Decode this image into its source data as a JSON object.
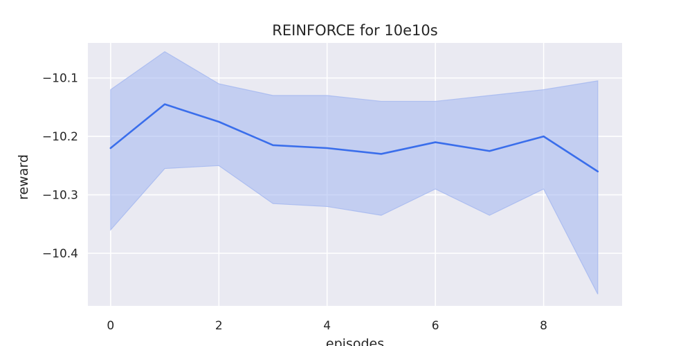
{
  "chart_data": {
    "type": "line",
    "title": "REINFORCE for 10e10s",
    "xlabel": "episodes",
    "ylabel": "reward",
    "x": [
      0,
      1,
      2,
      3,
      4,
      5,
      6,
      7,
      8,
      9
    ],
    "series": [
      {
        "values": [
          -10.22,
          -10.145,
          -10.175,
          -10.215,
          -10.22,
          -10.23,
          -10.21,
          -10.225,
          -10.2,
          -10.26
        ],
        "lower": [
          -10.36,
          -10.255,
          -10.25,
          -10.315,
          -10.32,
          -10.335,
          -10.29,
          -10.335,
          -10.29,
          -10.47
        ],
        "upper": [
          -10.12,
          -10.055,
          -10.11,
          -10.13,
          -10.13,
          -10.14,
          -10.14,
          -10.13,
          -10.12,
          -10.105
        ]
      }
    ],
    "xlim": [
      -0.42,
      9.45
    ],
    "ylim": [
      -10.49,
      -10.04
    ],
    "xticks": [
      0,
      2,
      4,
      6,
      8
    ],
    "xtick_labels": [
      "0",
      "2",
      "4",
      "6",
      "8"
    ],
    "yticks": [
      -10.1,
      -10.2,
      -10.3,
      -10.4
    ],
    "ytick_labels": [
      "−10.1",
      "−10.2",
      "−10.3",
      "−10.4"
    ],
    "grid": true,
    "colors": {
      "background": "#EAEAF2",
      "grid": "#FFFFFF",
      "line": "#3A6EEB",
      "band": "#A3B7F0"
    }
  }
}
